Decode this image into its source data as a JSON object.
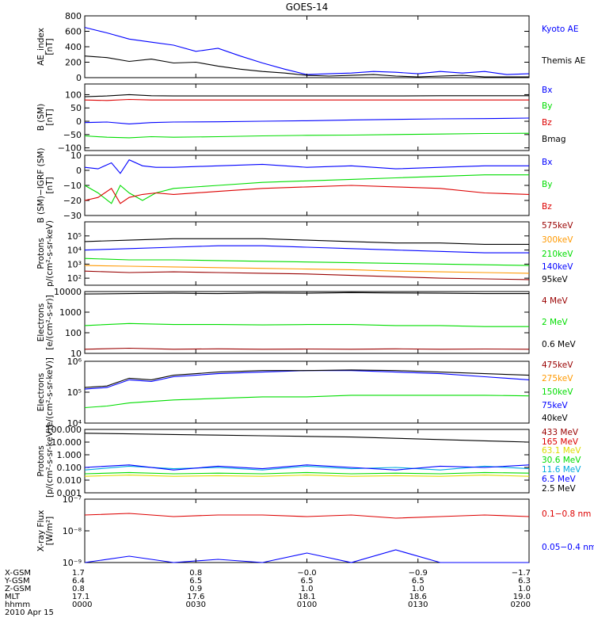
{
  "title": "GOES-14",
  "colors": {
    "black": "#000000",
    "blue": "#0000ff",
    "green": "#00dd00",
    "red": "#dd0000",
    "orange": "#ff9900",
    "yellow": "#dddd00",
    "cyan": "#00aadd",
    "magenta": "#aa00aa",
    "darkred": "#990000"
  },
  "chart_data": [
    {
      "type": "line",
      "id": "ae",
      "ylabel": [
        "AE_index",
        "[nT]"
      ],
      "scale": "linear",
      "ylim": [
        0,
        800
      ],
      "ticks": [
        "0",
        "200",
        "400",
        "600",
        "800"
      ],
      "tick_values": [
        0,
        200,
        400,
        600,
        800
      ],
      "x": [
        0,
        0.05,
        0.1,
        0.15,
        0.2,
        0.25,
        0.3,
        0.35,
        0.4,
        0.45,
        0.5,
        0.55,
        0.6,
        0.65,
        0.7,
        0.75,
        0.8,
        0.85,
        0.9,
        0.95,
        1
      ],
      "series": [
        {
          "name": "Kyoto AE",
          "color": "blue",
          "values": [
            650,
            580,
            500,
            460,
            420,
            340,
            380,
            280,
            190,
            110,
            40,
            50,
            60,
            80,
            70,
            50,
            80,
            60,
            80,
            40,
            50
          ]
        },
        {
          "name": "Themis AE",
          "color": "black",
          "values": [
            280,
            260,
            210,
            240,
            190,
            200,
            150,
            110,
            80,
            60,
            30,
            20,
            30,
            40,
            20,
            10,
            20,
            30,
            10,
            10,
            10
          ]
        }
      ]
    },
    {
      "type": "line",
      "id": "b",
      "ylabel": [
        "B (SM)",
        "[nT]"
      ],
      "scale": "linear",
      "ylim": [
        -110,
        140
      ],
      "ticks": [
        "−100",
        "−50",
        "0",
        "50",
        "100"
      ],
      "tick_values": [
        -100,
        -50,
        0,
        50,
        100
      ],
      "x": [
        0,
        0.05,
        0.1,
        0.15,
        0.2,
        0.3,
        0.4,
        0.5,
        0.6,
        0.7,
        0.8,
        0.9,
        1
      ],
      "series": [
        {
          "name": "Bx",
          "color": "blue",
          "values": [
            -5,
            -3,
            -10,
            -5,
            -3,
            -2,
            0,
            2,
            5,
            7,
            9,
            10,
            12
          ]
        },
        {
          "name": "By",
          "color": "green",
          "values": [
            -55,
            -60,
            -62,
            -58,
            -60,
            -58,
            -55,
            -53,
            -52,
            -50,
            -48,
            -46,
            -45
          ]
        },
        {
          "name": "Bz",
          "color": "red",
          "values": [
            80,
            78,
            82,
            80,
            80,
            80,
            80,
            80,
            80,
            80,
            80,
            80,
            80
          ]
        },
        {
          "name": "Bmag",
          "color": "black",
          "values": [
            92,
            95,
            100,
            96,
            95,
            95,
            95,
            95,
            95,
            95,
            96,
            96,
            96
          ]
        }
      ]
    },
    {
      "type": "line",
      "id": "dbigrf",
      "ylabel": [
        "B (SM)−IGRF (SM)",
        "[nT]"
      ],
      "scale": "linear",
      "ylim": [
        -30,
        10
      ],
      "ticks": [
        "−30",
        "−20",
        "−10",
        "0",
        "10"
      ],
      "tick_values": [
        -30,
        -20,
        -10,
        0,
        10
      ],
      "x": [
        0,
        0.03,
        0.06,
        0.08,
        0.1,
        0.13,
        0.16,
        0.2,
        0.3,
        0.4,
        0.5,
        0.6,
        0.7,
        0.8,
        0.9,
        1
      ],
      "series": [
        {
          "name": "Bx",
          "color": "blue",
          "values": [
            2,
            1,
            5,
            -2,
            7,
            3,
            2,
            2,
            3,
            4,
            2,
            3,
            1,
            2,
            3,
            3
          ]
        },
        {
          "name": "By",
          "color": "green",
          "values": [
            -10,
            -15,
            -22,
            -10,
            -15,
            -20,
            -15,
            -12,
            -10,
            -8,
            -7,
            -6,
            -5,
            -4,
            -3,
            -3
          ]
        },
        {
          "name": "Bz",
          "color": "red",
          "values": [
            -20,
            -18,
            -12,
            -22,
            -18,
            -16,
            -15,
            -16,
            -14,
            -12,
            -11,
            -10,
            -11,
            -12,
            -15,
            -16
          ]
        }
      ]
    },
    {
      "type": "line",
      "id": "protons_kev",
      "ylabel": [
        "Protons",
        "p/(cm²-s-sr-keV)"
      ],
      "scale": "log",
      "ylim": [
        1.5,
        6
      ],
      "ticks": [
        "10²",
        "10³",
        "10⁴",
        "10⁵"
      ],
      "tick_values": [
        2,
        3,
        4,
        5
      ],
      "x": [
        0,
        0.1,
        0.2,
        0.3,
        0.4,
        0.5,
        0.6,
        0.7,
        0.8,
        0.9,
        1
      ],
      "series": [
        {
          "name": "575keV",
          "color": "darkred",
          "values": [
            2.5,
            2.4,
            2.45,
            2.4,
            2.35,
            2.3,
            2.2,
            2.1,
            2.0,
            1.95,
            1.9
          ]
        },
        {
          "name": "300keV",
          "color": "orange",
          "values": [
            2.9,
            2.85,
            2.8,
            2.75,
            2.7,
            2.65,
            2.6,
            2.5,
            2.45,
            2.4,
            2.35
          ]
        },
        {
          "name": "210keV",
          "color": "green",
          "values": [
            3.4,
            3.3,
            3.3,
            3.25,
            3.2,
            3.15,
            3.1,
            3.05,
            3.0,
            2.95,
            2.9
          ]
        },
        {
          "name": "140keV",
          "color": "blue",
          "values": [
            4.0,
            4.1,
            4.2,
            4.3,
            4.3,
            4.2,
            4.1,
            4.0,
            3.9,
            3.8,
            3.8
          ]
        },
        {
          "name": "95keV",
          "color": "black",
          "values": [
            4.6,
            4.7,
            4.8,
            4.8,
            4.8,
            4.7,
            4.6,
            4.5,
            4.5,
            4.4,
            4.4
          ]
        }
      ]
    },
    {
      "type": "line",
      "id": "electrons_mev",
      "ylabel": [
        "Electrons",
        "[e/(cm²-s-sr)]"
      ],
      "scale": "log",
      "ylim": [
        1,
        4
      ],
      "ticks": [
        "10",
        "100",
        "1000",
        "10000"
      ],
      "tick_values": [
        1,
        2,
        3,
        4
      ],
      "x": [
        0,
        0.1,
        0.2,
        0.3,
        0.4,
        0.5,
        0.6,
        0.7,
        0.8,
        0.9,
        1
      ],
      "series": [
        {
          "name": "4 MeV",
          "color": "darkred",
          "values": [
            1.2,
            1.25,
            1.2,
            1.22,
            1.2,
            1.21,
            1.2,
            1.22,
            1.2,
            1.21,
            1.2
          ]
        },
        {
          "name": "2 MeV",
          "color": "green",
          "values": [
            2.35,
            2.45,
            2.4,
            2.4,
            2.38,
            2.4,
            2.4,
            2.35,
            2.35,
            2.3,
            2.3
          ]
        },
        {
          "name": "0.6 MeV",
          "color": "black",
          "values": [
            3.88,
            3.9,
            3.92,
            3.9,
            3.93,
            3.92,
            3.95,
            3.93,
            3.92,
            3.9,
            3.9
          ]
        }
      ]
    },
    {
      "type": "line",
      "id": "electrons_kev",
      "ylabel": [
        "Electrons",
        "e/(cm²-s-sr-keV)]"
      ],
      "scale": "log",
      "ylim": [
        4,
        6
      ],
      "ticks": [
        "10⁴",
        "10⁵",
        "10⁶"
      ],
      "tick_values": [
        4,
        5,
        6
      ],
      "x": [
        0,
        0.05,
        0.1,
        0.15,
        0.2,
        0.3,
        0.4,
        0.5,
        0.6,
        0.7,
        0.8,
        0.9,
        1
      ],
      "series": [
        {
          "name": "475keV",
          "color": "darkred",
          "values": [
            null,
            null,
            null,
            null,
            null,
            null,
            null,
            null,
            null,
            null,
            null,
            null,
            null
          ]
        },
        {
          "name": "275keV",
          "color": "orange",
          "values": [
            null,
            null,
            null,
            null,
            null,
            null,
            null,
            null,
            null,
            null,
            null,
            null,
            null
          ]
        },
        {
          "name": "150keV",
          "color": "green",
          "values": [
            4.5,
            4.55,
            4.65,
            4.7,
            4.75,
            4.8,
            4.85,
            4.85,
            4.9,
            4.9,
            4.9,
            4.9,
            4.88
          ]
        },
        {
          "name": "75keV",
          "color": "blue",
          "values": [
            5.1,
            5.15,
            5.4,
            5.35,
            5.5,
            5.6,
            5.65,
            5.7,
            5.7,
            5.65,
            5.6,
            5.5,
            5.4
          ]
        },
        {
          "name": "40keV",
          "color": "black",
          "values": [
            5.15,
            5.2,
            5.45,
            5.4,
            5.55,
            5.65,
            5.7,
            5.7,
            5.72,
            5.7,
            5.65,
            5.6,
            5.55
          ]
        }
      ]
    },
    {
      "type": "line",
      "id": "protons_mev",
      "ylabel": [
        "Protons",
        "[p/(cm²-s-sr-keV)]"
      ],
      "scale": "log",
      "ylim": [
        -3,
        2
      ],
      "ticks": [
        "0.001",
        "0.010",
        "0.100",
        "1.000",
        "10.000",
        "100.000"
      ],
      "tick_values": [
        -3,
        -2,
        -1,
        0,
        1,
        2
      ],
      "x": [
        0,
        0.1,
        0.2,
        0.3,
        0.4,
        0.5,
        0.6,
        0.7,
        0.8,
        0.9,
        1
      ],
      "series": [
        {
          "name": "433 MeV",
          "color": "darkred",
          "values": [
            null,
            null,
            null,
            null,
            null,
            null,
            null,
            null,
            null,
            null,
            null
          ]
        },
        {
          "name": "165 MeV",
          "color": "red",
          "values": [
            null,
            null,
            null,
            null,
            null,
            null,
            null,
            null,
            null,
            null,
            null
          ]
        },
        {
          "name": "63.1 MeV",
          "color": "yellow",
          "values": [
            -1.7,
            -1.6,
            -1.7,
            -1.65,
            -1.7,
            -1.6,
            -1.7,
            -1.65,
            -1.7,
            -1.6,
            -1.7
          ]
        },
        {
          "name": "30.6 MeV",
          "color": "green",
          "values": [
            -1.5,
            -1.4,
            -1.5,
            -1.45,
            -1.5,
            -1.4,
            -1.5,
            -1.45,
            -1.5,
            -1.4,
            -1.45
          ]
        },
        {
          "name": "11.6 MeV",
          "color": "cyan",
          "values": [
            -1.2,
            -0.9,
            -1.1,
            -1.0,
            -1.2,
            -0.9,
            -1.1,
            -1.0,
            -1.2,
            -0.9,
            -1.1
          ]
        },
        {
          "name": "6.5 MeV",
          "color": "blue",
          "values": [
            -1.0,
            -0.8,
            -1.2,
            -0.9,
            -1.1,
            -0.8,
            -1.0,
            -1.2,
            -0.9,
            -1.0,
            -0.8
          ]
        },
        {
          "name": "2.5 MeV",
          "color": "black",
          "values": [
            1.7,
            1.65,
            1.6,
            1.55,
            1.5,
            1.45,
            1.4,
            1.3,
            1.2,
            1.1,
            1.0
          ]
        }
      ]
    },
    {
      "type": "line",
      "id": "xray",
      "ylabel": [
        "X-ray Flux",
        "[W/m²]"
      ],
      "scale": "log",
      "ylim": [
        -9,
        -7
      ],
      "ticks": [
        "10⁻⁹",
        "10⁻⁸",
        "10⁻⁷"
      ],
      "tick_values": [
        -9,
        -8,
        -7
      ],
      "x": [
        0,
        0.1,
        0.2,
        0.3,
        0.4,
        0.5,
        0.6,
        0.7,
        0.8,
        0.9,
        1
      ],
      "series": [
        {
          "name": "0.1−0.8 nm",
          "color": "red",
          "values": [
            -7.5,
            -7.45,
            -7.55,
            -7.5,
            -7.5,
            -7.55,
            -7.5,
            -7.6,
            -7.55,
            -7.5,
            -7.55
          ]
        },
        {
          "name": "0.05−0.4 nm",
          "color": "blue",
          "values": [
            -9.0,
            -8.8,
            -9.0,
            -8.9,
            -9.0,
            -8.7,
            -9.0,
            -8.6,
            -9.0,
            -9.0,
            -9.0
          ]
        }
      ]
    }
  ],
  "xaxis": {
    "row_labels": [
      "X-GSM",
      "Y-GSM",
      "Z-GSM",
      "MLT",
      "hhmm"
    ],
    "date": "2010 Apr 15",
    "ticks": [
      {
        "pos": 0,
        "values": [
          "1.7",
          "6.4",
          "0.8",
          "17.1",
          "0000"
        ]
      },
      {
        "pos": 0.25,
        "values": [
          "0.8",
          "6.5",
          "0.9",
          "17.6",
          "0030"
        ]
      },
      {
        "pos": 0.5,
        "values": [
          "−0.0",
          "6.5",
          "1.0",
          "18.1",
          "0100"
        ]
      },
      {
        "pos": 0.75,
        "values": [
          "−0.9",
          "6.5",
          "1.0",
          "18.6",
          "0130"
        ]
      },
      {
        "pos": 1,
        "values": [
          "−1.7",
          "6.3",
          "1.0",
          "19.0",
          "0200"
        ]
      }
    ]
  }
}
